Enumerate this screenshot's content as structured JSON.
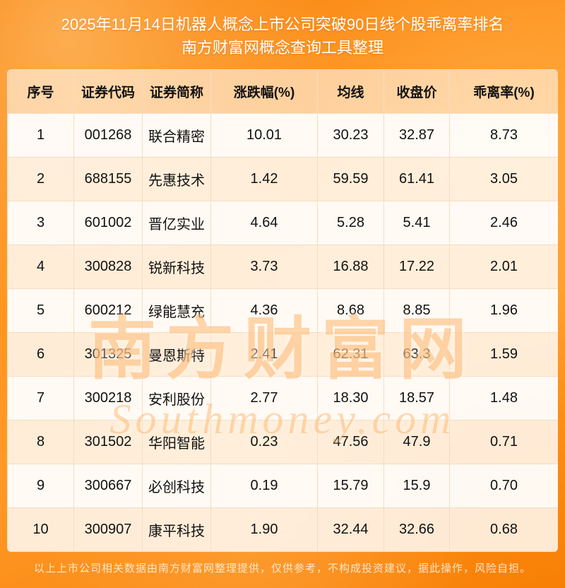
{
  "title": {
    "line1": "2025年11月14日机器人概念上市公司突破90日线个股乖离率排名",
    "line2": "南方财富网概念查询工具整理"
  },
  "watermark": {
    "cn": "南方财富网",
    "en": "Southmoney.com"
  },
  "footer": {
    "disclaimer": "以上上市公司相关数据由南方财富网整理提供，仅供参考，不构成投资建议，据此操作，风险自担。"
  },
  "colors": {
    "background_orange": "#ff8c1a",
    "header_bg": "rgba(255,255,255,0.55)",
    "row_text": "#111111",
    "title_text": "#ffffff"
  },
  "chart_data": {
    "type": "table",
    "title": "2025年11月14日机器人概念上市公司突破90日线个股乖离率排名",
    "subtitle": "南方财富网概念查询工具整理",
    "columns": [
      "序号",
      "证券代码",
      "证券简称",
      "涨跌幅(%)",
      "均线",
      "收盘价",
      "乖离率(%)"
    ],
    "rows": [
      [
        "1",
        "001268",
        "联合精密",
        "10.01",
        "30.23",
        "32.87",
        "8.73"
      ],
      [
        "2",
        "688155",
        "先惠技术",
        "1.42",
        "59.59",
        "61.41",
        "3.05"
      ],
      [
        "3",
        "601002",
        "晋亿实业",
        "4.64",
        "5.28",
        "5.41",
        "2.46"
      ],
      [
        "4",
        "300828",
        "锐新科技",
        "3.73",
        "16.88",
        "17.22",
        "2.01"
      ],
      [
        "5",
        "600212",
        "绿能慧充",
        "4.36",
        "8.68",
        "8.85",
        "1.96"
      ],
      [
        "6",
        "301325",
        "曼恩斯特",
        "2.41",
        "62.31",
        "63.3",
        "1.59"
      ],
      [
        "7",
        "300218",
        "安利股份",
        "2.77",
        "18.30",
        "18.57",
        "1.48"
      ],
      [
        "8",
        "301502",
        "华阳智能",
        "0.23",
        "47.56",
        "47.9",
        "0.71"
      ],
      [
        "9",
        "300667",
        "必创科技",
        "0.19",
        "15.79",
        "15.9",
        "0.70"
      ],
      [
        "10",
        "300907",
        "康平科技",
        "1.90",
        "32.44",
        "32.66",
        "0.68"
      ]
    ]
  }
}
